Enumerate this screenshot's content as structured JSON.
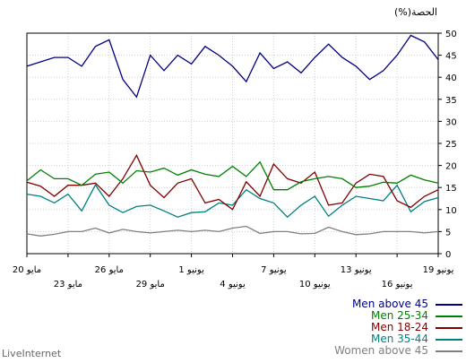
{
  "chart_data": {
    "type": "line",
    "title": "",
    "ylabel": "(%)الحصة",
    "ylim": [
      0,
      50
    ],
    "y_ticks": [
      0,
      5,
      10,
      15,
      20,
      25,
      30,
      35,
      40,
      45,
      50
    ],
    "grid": true,
    "legend_position": "bottom-right",
    "x_tick_labels": [
      {
        "text": "19 يونيو",
        "index": 0,
        "row": 1
      },
      {
        "text": "16 يونيو",
        "index": 3,
        "row": 2
      },
      {
        "text": "13 يونيو",
        "index": 6,
        "row": 1
      },
      {
        "text": "10 يونيو",
        "index": 9,
        "row": 2
      },
      {
        "text": "7 يونيو",
        "index": 12,
        "row": 1
      },
      {
        "text": "4 يونيو",
        "index": 15,
        "row": 2
      },
      {
        "text": "1 يونيو",
        "index": 18,
        "row": 1
      },
      {
        "text": "29 مايو",
        "index": 21,
        "row": 2
      },
      {
        "text": "26 مايو",
        "index": 24,
        "row": 1
      },
      {
        "text": "23 مايو",
        "index": 27,
        "row": 2
      },
      {
        "text": "20 مايو",
        "index": 30,
        "row": 1
      }
    ],
    "series": [
      {
        "name": "Men above 45",
        "color": "#000080",
        "values": [
          44,
          48,
          49.5,
          45,
          41.5,
          39.5,
          42.5,
          44.5,
          47.5,
          44.5,
          41,
          43.5,
          42,
          45.5,
          39,
          42.5,
          45,
          47,
          43,
          45,
          41.5,
          45,
          35.5,
          39.5,
          48.5,
          47,
          42.5,
          44.5,
          44.5,
          43.5,
          42.5
        ]
      },
      {
        "name": "Men 25-34",
        "color": "#008000",
        "values": [
          16,
          16.7,
          17.8,
          16,
          16.2,
          15.3,
          15,
          17,
          17.5,
          17,
          16.3,
          14.5,
          14.5,
          20.8,
          17.5,
          19.8,
          17.5,
          18,
          19,
          17.8,
          19.4,
          18.5,
          18.8,
          16,
          18.5,
          18,
          15.5,
          17,
          17,
          19,
          16.5
        ]
      },
      {
        "name": "Men 18-24",
        "color": "#800000",
        "values": [
          14.5,
          13,
          10.5,
          12,
          17.5,
          18,
          16,
          11.5,
          11,
          18.5,
          16,
          17,
          20.3,
          13,
          16.3,
          10,
          12.3,
          11.5,
          17,
          16,
          12.7,
          15.5,
          22.3,
          17,
          13,
          16,
          15.5,
          15.5,
          13,
          15.3,
          16.2
        ]
      },
      {
        "name": "Men 35-44",
        "color": "#008080",
        "values": [
          12.7,
          11.8,
          9.5,
          15.5,
          12,
          12.5,
          13,
          11,
          8.5,
          13,
          11,
          8.3,
          11.5,
          12.5,
          14.5,
          11,
          11.5,
          9.5,
          9.3,
          8.3,
          9.7,
          11,
          10.7,
          9.3,
          11,
          15.6,
          9.7,
          13.5,
          11.5,
          13,
          13.5
        ]
      },
      {
        "name": "Women above 45",
        "color": "#808080",
        "values": [
          5,
          4.7,
          5,
          5,
          5,
          4.5,
          4.3,
          5,
          6,
          4.6,
          4.5,
          5,
          5,
          4.6,
          6.2,
          5.8,
          5,
          5.3,
          5,
          5.3,
          5,
          4.7,
          5,
          5.5,
          4.7,
          5.8,
          5,
          5,
          4.4,
          4,
          4.5
        ]
      }
    ]
  },
  "legend": {
    "items": [
      {
        "label": "Men above 45",
        "color": "#000080"
      },
      {
        "label": "Men 25-34",
        "color": "#008000"
      },
      {
        "label": "Men 18-24",
        "color": "#800000"
      },
      {
        "label": "Men 35-44",
        "color": "#008080"
      },
      {
        "label": "Women above 45",
        "color": "#808080"
      }
    ]
  },
  "footer": {
    "brand": "LiveInternet"
  }
}
